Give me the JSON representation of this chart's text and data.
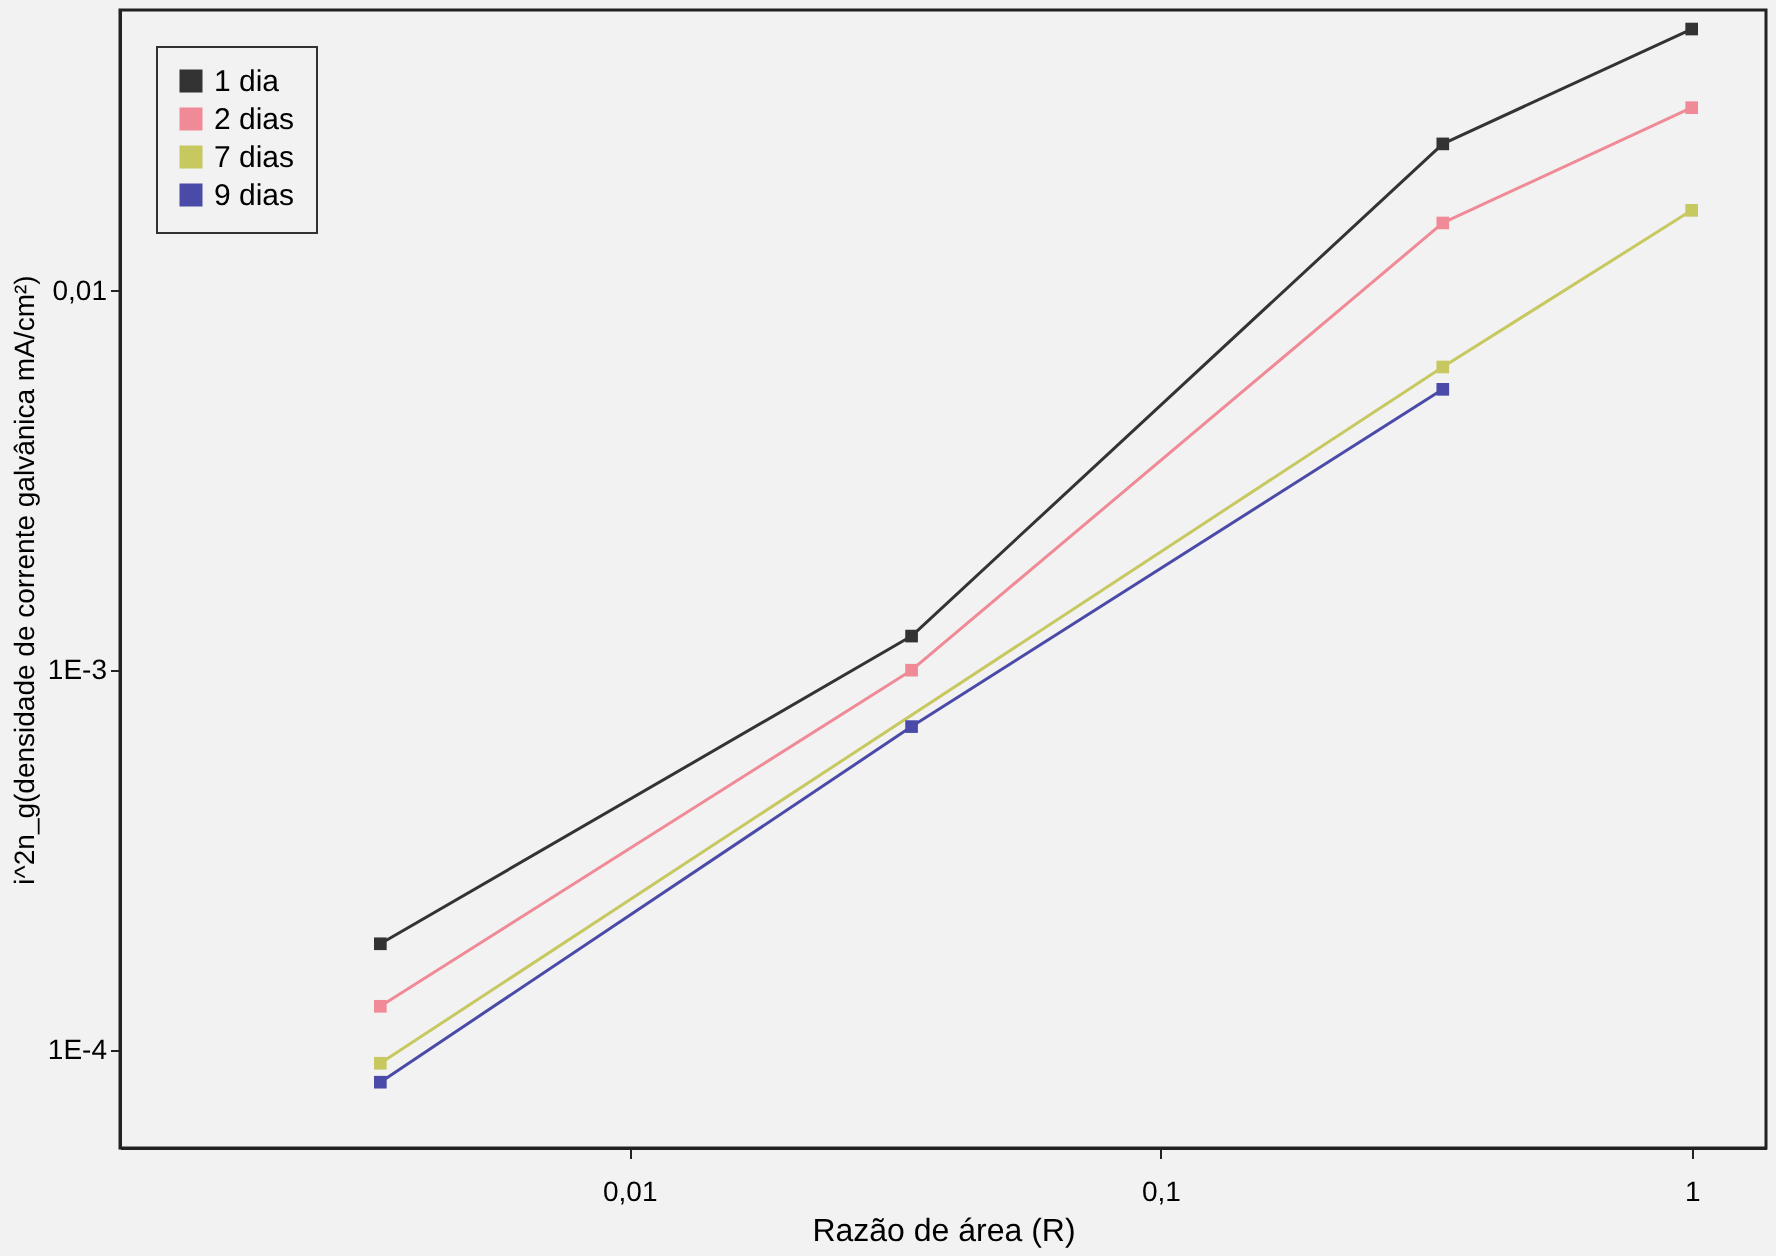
{
  "chart_data": {
    "type": "line",
    "xlabel": "Razão de área (R)",
    "ylabel": "i^2n_g(densidade de corrente galvânica mA/cm²)",
    "log": "xy",
    "marker": "square",
    "grid": false,
    "legend": "top left",
    "xlim": [
      0.0011,
      1.38
    ],
    "ylim": [
      5.5e-05,
      0.055
    ],
    "xticks": [
      {
        "value": 0.01,
        "label": "0,01"
      },
      {
        "value": 0.1,
        "label": "0,1"
      },
      1
    ],
    "yticks": [
      {
        "value": 0.0001,
        "label": "1E-4"
      },
      {
        "value": 0.001,
        "label": "1E-3"
      },
      {
        "value": 0.01,
        "label": "0,01"
      }
    ],
    "x": [
      0.0034,
      0.034,
      0.34,
      1
    ],
    "series": [
      {
        "name": "1 dia",
        "color": "#333333",
        "values": [
          0.00019,
          0.00123,
          0.0244,
          0.049
        ]
      },
      {
        "name": "2 dias",
        "color": "#f08a96",
        "values": [
          0.00013,
          0.001,
          0.0151,
          0.0304
        ]
      },
      {
        "name": "7 dias",
        "color": "#c8c860",
        "values": [
          9.2e-05,
          null,
          0.0063,
          0.0163
        ]
      },
      {
        "name": "9 dias",
        "color": "#4a4aa8",
        "values": [
          8.2e-05,
          0.00071,
          0.0055,
          null
        ]
      }
    ]
  }
}
